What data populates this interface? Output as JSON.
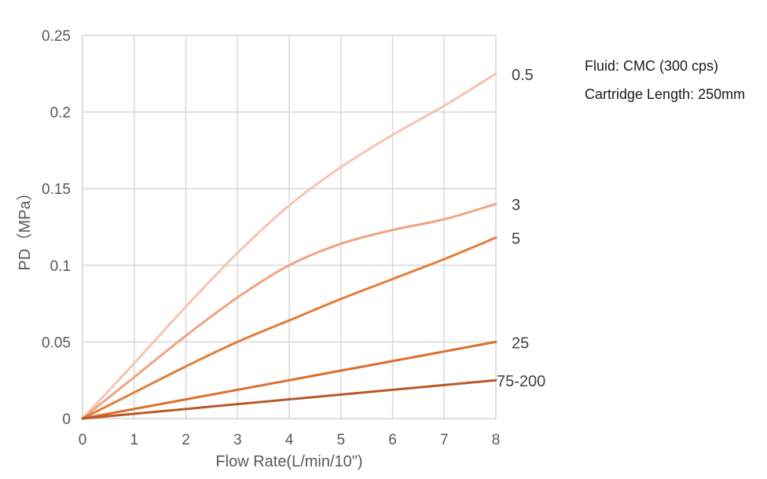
{
  "notes": {
    "fluid": "Fluid: CMC (300 cps)",
    "cartridge": "Cartridge Length: 250mm"
  },
  "chart_data": {
    "type": "line",
    "title": "",
    "xlabel": "Flow Rate(L/min/10\")",
    "ylabel": "PD（MPa）",
    "xlim": [
      0,
      8
    ],
    "ylim": [
      0,
      0.25
    ],
    "xticks": [
      0,
      1,
      2,
      3,
      4,
      5,
      6,
      7,
      8
    ],
    "yticks": [
      0,
      0.05,
      0.1,
      0.15,
      0.2,
      0.25
    ],
    "ytick_labels": [
      "0",
      "0.05",
      "0.1",
      "0.15",
      "0.2",
      "0.25"
    ],
    "grid": true,
    "legend": "labels at line ends (right)",
    "series": [
      {
        "name": "0.5",
        "color": "#f6c3b0",
        "x": [
          0,
          1,
          2,
          3,
          4,
          5,
          6,
          7,
          8
        ],
        "y": [
          0,
          0.036,
          0.073,
          0.108,
          0.139,
          0.164,
          0.185,
          0.204,
          0.225
        ]
      },
      {
        "name": "3",
        "color": "#eda583",
        "x": [
          0,
          1,
          2,
          3,
          4,
          5,
          6,
          7,
          8
        ],
        "y": [
          0,
          0.027,
          0.054,
          0.079,
          0.1,
          0.114,
          0.123,
          0.13,
          0.14
        ]
      },
      {
        "name": "5",
        "color": "#e47d3a",
        "x": [
          0,
          1,
          2,
          3,
          4,
          5,
          6,
          7,
          8
        ],
        "y": [
          0,
          0.017,
          0.034,
          0.05,
          0.064,
          0.078,
          0.091,
          0.104,
          0.118
        ]
      },
      {
        "name": "25",
        "color": "#d9702c",
        "x": [
          0,
          8
        ],
        "y": [
          0,
          0.05
        ]
      },
      {
        "name": "75-200",
        "color": "#b9582a",
        "x": [
          0,
          8
        ],
        "y": [
          0,
          0.025
        ]
      }
    ]
  }
}
